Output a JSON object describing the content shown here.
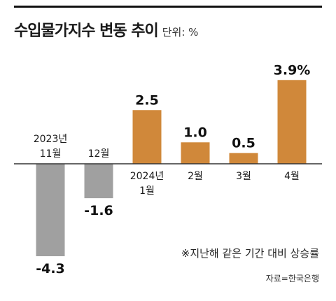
{
  "title": "수입물가지수 변동 추이",
  "unit": "단위: %",
  "note": "※지난해 같은 기간 대비 상승률",
  "source": "자료=한국은행",
  "colors": {
    "positive": "#d0883a",
    "negative": "#a0a0a0"
  },
  "chart_data": {
    "type": "bar",
    "categories": [
      "2023년 11월",
      "12월",
      "2024년 1월",
      "2월",
      "3월",
      "4월"
    ],
    "category_lines": [
      [
        "2023년",
        "11월"
      ],
      [
        "12월"
      ],
      [
        "2024년",
        "1월"
      ],
      [
        "2월"
      ],
      [
        "3월"
      ],
      [
        "4월"
      ]
    ],
    "values": [
      -4.3,
      -1.6,
      2.5,
      1.0,
      0.5,
      3.9
    ],
    "value_labels": [
      "-4.3",
      "-1.6",
      "2.5",
      "1.0",
      "0.5",
      "3.9%"
    ],
    "ylim": [
      -4.3,
      3.9
    ]
  }
}
